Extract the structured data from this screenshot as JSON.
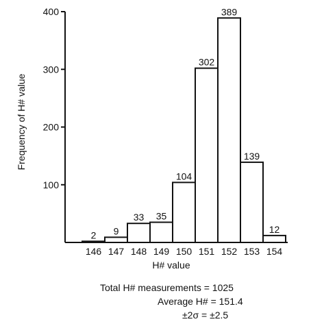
{
  "chart_data": {
    "type": "bar",
    "title": "",
    "xlabel": "H# value",
    "ylabel": "Frequency of H# value",
    "categories": [
      "146",
      "147",
      "148",
      "149",
      "150",
      "151",
      "152",
      "153",
      "154"
    ],
    "values": [
      2,
      9,
      33,
      35,
      104,
      302,
      389,
      139,
      12
    ],
    "data_labels": [
      "2",
      "9",
      "33",
      "35",
      "104",
      "302",
      "389",
      "139",
      "12"
    ],
    "yticks": [
      "100",
      "200",
      "300",
      "400"
    ],
    "ylim": [
      0,
      400
    ],
    "grid": false,
    "legend": "none"
  },
  "stats": {
    "total": "Total H# measurements = 1025",
    "average": "Average H# = 151.4",
    "sigma": "±2σ = ±2.5"
  }
}
